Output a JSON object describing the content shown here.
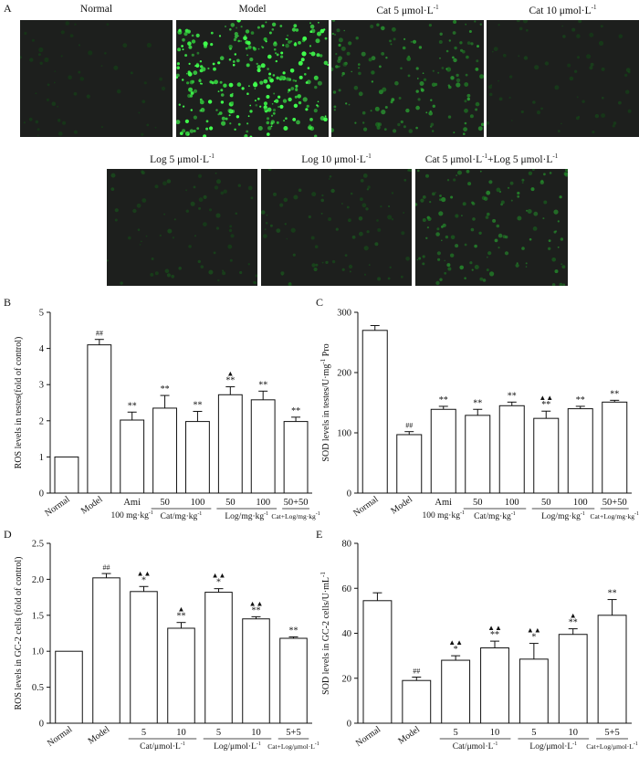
{
  "panels": {
    "a": "A",
    "b": "B",
    "c": "C",
    "d": "D",
    "e": "E"
  },
  "micrographs": [
    {
      "title": "Normal",
      "sup": "",
      "intensity": 0.05
    },
    {
      "title": "Model",
      "sup": "",
      "intensity": 1.0
    },
    {
      "title": "Cat 5 μmol·L",
      "sup": "-1",
      "intensity": 0.45
    },
    {
      "title": "Cat 10 μmol·L",
      "sup": "-1",
      "intensity": 0.08
    },
    {
      "title": "Log 5 μmol·L",
      "sup": "-1",
      "intensity": 0.12
    },
    {
      "title": "Log 10 μmol·L",
      "sup": "-1",
      "intensity": 0.15
    },
    {
      "title": "Cat 5 μmol·L",
      "sup": "-1",
      "title2": "+Log 5 μmol·L",
      "sup2": "-1",
      "intensity": 0.35
    }
  ],
  "chart_data": [
    {
      "id": "B",
      "type": "bar",
      "ylabel": "ROS levels in testes(fold of control)",
      "ylim": [
        0,
        5
      ],
      "yticks": [
        0,
        1,
        2,
        3,
        4,
        5
      ],
      "values": [
        1.0,
        4.1,
        2.02,
        2.35,
        1.98,
        2.72,
        2.58,
        1.98
      ],
      "errors": [
        0,
        0.15,
        0.22,
        0.35,
        0.28,
        0.22,
        0.24,
        0.12
      ],
      "marks": [
        "",
        "##",
        "**",
        "**",
        "**",
        "▲\n**",
        "**",
        "**"
      ],
      "xlabels": [
        "Normal",
        "Model",
        "Ami",
        "50",
        "100",
        "50",
        "100",
        "50+50"
      ],
      "sublabels": [
        {
          "text": "100 mg·kg",
          "sup": "-1",
          "from": 2,
          "to": 2,
          "line": false
        },
        {
          "text": "Cat/mg·kg",
          "sup": "-1",
          "from": 3,
          "to": 4,
          "line": true
        },
        {
          "text": "Log/mg·kg",
          "sup": "-1",
          "from": 5,
          "to": 6,
          "line": true
        },
        {
          "text": "Cat+Log/mg·kg",
          "sup": "-1",
          "from": 7,
          "to": 7,
          "line": true,
          "small": true
        }
      ]
    },
    {
      "id": "C",
      "type": "bar",
      "ylabel": "SOD levels in testes/U·mg",
      "ylabel_sup": "-1",
      "ylabel_tail": " Pro",
      "ylim": [
        0,
        300
      ],
      "yticks": [
        0,
        100,
        200,
        300
      ],
      "values": [
        270,
        97,
        139,
        129,
        145,
        124,
        140,
        151
      ],
      "errors": [
        8,
        5,
        5,
        10,
        6,
        12,
        4,
        3
      ],
      "marks": [
        "",
        "##",
        "**",
        "**",
        "**",
        "▲▲\n**",
        "**",
        "**"
      ],
      "xlabels": [
        "Normal",
        "Model",
        "Ami",
        "50",
        "100",
        "50",
        "100",
        "50+50"
      ],
      "sublabels": [
        {
          "text": "100 mg·kg",
          "sup": "-1",
          "from": 2,
          "to": 2,
          "line": false
        },
        {
          "text": "Cat/mg·kg",
          "sup": "-1",
          "from": 3,
          "to": 4,
          "line": true
        },
        {
          "text": "Log/mg·kg",
          "sup": "-1",
          "from": 5,
          "to": 6,
          "line": true
        },
        {
          "text": "Cat+Log/mg·kg",
          "sup": "-1",
          "from": 7,
          "to": 7,
          "line": true,
          "small": true
        }
      ]
    },
    {
      "id": "D",
      "type": "bar",
      "ylabel": "ROS levels in GC-2 cells (fold of control)",
      "ylim": [
        0,
        2.5
      ],
      "yticks": [
        0.0,
        0.5,
        1.0,
        1.5,
        2.0,
        2.5
      ],
      "ytick_labels": [
        "0",
        "0.5",
        "1.0",
        "1.5",
        "2.0",
        "2.5"
      ],
      "values": [
        1.0,
        2.02,
        1.83,
        1.32,
        1.82,
        1.45,
        1.18
      ],
      "errors": [
        0,
        0.06,
        0.07,
        0.08,
        0.05,
        0.03,
        0.02
      ],
      "marks": [
        "",
        "##",
        "▲▲\n*",
        "▲\n**",
        "▲▲\n*",
        "▲▲\n**",
        "**"
      ],
      "xlabels": [
        "Normal",
        "Model",
        "5",
        "10",
        "5",
        "10",
        "5+5"
      ],
      "sublabels": [
        {
          "text": "Cat/μmol·L",
          "sup": "-1",
          "from": 2,
          "to": 3,
          "line": true
        },
        {
          "text": "Log/μmol·L",
          "sup": "-1",
          "from": 4,
          "to": 5,
          "line": true
        },
        {
          "text": "Cat+Log/μmol·L",
          "sup": "-1",
          "from": 6,
          "to": 6,
          "line": true,
          "small": true
        }
      ]
    },
    {
      "id": "E",
      "type": "bar",
      "ylabel": "SOD levels in GC-2 cells/U·mL",
      "ylabel_sup": "-1",
      "ylim": [
        0,
        80
      ],
      "yticks": [
        0,
        20,
        40,
        60,
        80
      ],
      "values": [
        54.5,
        19,
        28,
        33.5,
        28.5,
        39.5,
        48
      ],
      "errors": [
        3.5,
        1.5,
        2,
        3,
        7,
        2.5,
        7
      ],
      "marks": [
        "",
        "##",
        "▲▲\n*",
        "▲▲\n**",
        "▲▲\n*",
        "▲\n**",
        "**"
      ],
      "xlabels": [
        "Normal",
        "Model",
        "5",
        "10",
        "5",
        "10",
        "5+5"
      ],
      "sublabels": [
        {
          "text": "Cat/μmol·L",
          "sup": "-1",
          "from": 2,
          "to": 3,
          "line": true
        },
        {
          "text": "Log/μmol·L",
          "sup": "-1",
          "from": 4,
          "to": 5,
          "line": true
        },
        {
          "text": "Cat+Log/μmol·L",
          "sup": "-1",
          "from": 6,
          "to": 6,
          "line": true,
          "small": true
        }
      ]
    }
  ]
}
